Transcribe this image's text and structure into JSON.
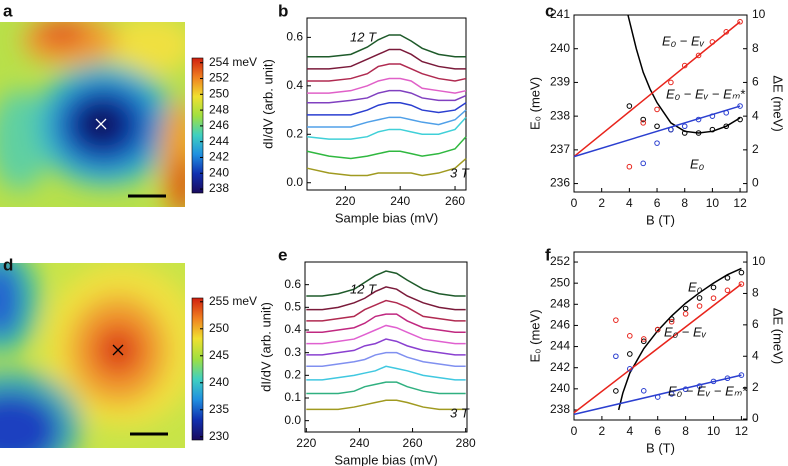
{
  "chart_data": [
    {
      "type": "heatmap",
      "label": "a",
      "colormap": [
        "#1a0a5e",
        "#1030b0",
        "#2090e0",
        "#40d0c0",
        "#a0e040",
        "#f0e030",
        "#f08020",
        "#d02010"
      ],
      "clim": [
        237.5,
        254.6
      ],
      "cticks": [
        {
          "value": 254,
          "label": "254 meV"
        },
        252,
        250,
        248,
        246,
        244,
        242,
        240,
        238
      ]
    },
    {
      "type": "line",
      "label": "b",
      "xlabel": "Sample bias (mV)",
      "ylabel": "dI/dV (arb. unit)",
      "xlim": [
        206,
        264
      ],
      "ylim": [
        -0.03,
        0.68
      ],
      "xticks": [
        220,
        240,
        260
      ],
      "yticks": [
        {
          "value": 0,
          "label": "0.0"
        },
        0.2,
        0.4,
        0.6
      ],
      "x": [
        206,
        214,
        222,
        228,
        232,
        236,
        240,
        244,
        248,
        254,
        260,
        264
      ],
      "series": [
        {
          "color": "#1e5a2a",
          "values": [
            0.52,
            0.52,
            0.53,
            0.56,
            0.59,
            0.61,
            0.61,
            0.585,
            0.555,
            0.53,
            0.52,
            0.52
          ]
        },
        {
          "color": "#7a1a3a",
          "values": [
            0.47,
            0.47,
            0.48,
            0.51,
            0.53,
            0.55,
            0.55,
            0.53,
            0.5,
            0.48,
            0.47,
            0.47
          ]
        },
        {
          "color": "#b02a50",
          "values": [
            0.42,
            0.42,
            0.43,
            0.45,
            0.48,
            0.49,
            0.49,
            0.47,
            0.45,
            0.43,
            0.42,
            0.43
          ]
        },
        {
          "color": "#e060c8",
          "values": [
            0.37,
            0.37,
            0.38,
            0.4,
            0.42,
            0.43,
            0.43,
            0.42,
            0.39,
            0.38,
            0.37,
            0.38
          ]
        },
        {
          "color": "#8040c0",
          "values": [
            0.33,
            0.33,
            0.34,
            0.35,
            0.37,
            0.38,
            0.38,
            0.37,
            0.35,
            0.34,
            0.34,
            0.36
          ]
        },
        {
          "color": "#2b3fd0",
          "values": [
            0.28,
            0.28,
            0.28,
            0.3,
            0.32,
            0.33,
            0.33,
            0.32,
            0.3,
            0.29,
            0.3,
            0.33
          ]
        },
        {
          "color": "#50a0e8",
          "values": [
            0.23,
            0.23,
            0.23,
            0.25,
            0.26,
            0.27,
            0.27,
            0.26,
            0.25,
            0.24,
            0.26,
            0.3
          ]
        },
        {
          "color": "#40d0d8",
          "values": [
            0.19,
            0.18,
            0.18,
            0.19,
            0.21,
            0.22,
            0.22,
            0.21,
            0.2,
            0.2,
            0.22,
            0.27
          ]
        },
        {
          "color": "#30b840",
          "values": [
            0.13,
            0.11,
            0.1,
            0.11,
            0.12,
            0.13,
            0.13,
            0.12,
            0.11,
            0.12,
            0.14,
            0.19
          ]
        },
        {
          "color": "#a09a20",
          "values": [
            0.06,
            0.04,
            0.03,
            0.03,
            0.04,
            0.04,
            0.04,
            0.04,
            0.03,
            0.04,
            0.06,
            0.1
          ]
        }
      ],
      "annotations": [
        {
          "text": "12 T",
          "color": "#1e5a2a"
        },
        {
          "text": "3 T",
          "color": "#a09a20"
        }
      ]
    },
    {
      "type": "line",
      "label": "c",
      "xlabel": "B (T)",
      "ylabel": "E₀ (meV)",
      "y2label": "ΔE (meV)",
      "xlim": [
        0,
        12.5
      ],
      "ylim": [
        235.75,
        241
      ],
      "y2lim": [
        -0.5,
        10
      ],
      "xticks": [
        0,
        2,
        4,
        6,
        8,
        10,
        12
      ],
      "yticks": [
        236,
        237,
        238,
        239,
        240,
        241
      ],
      "y2ticks": [
        0,
        2,
        4,
        6,
        8,
        10
      ],
      "series": [
        {
          "mode": "line",
          "axis": "y",
          "color": "#000000",
          "x": [
            3.9,
            4.5,
            5,
            5.5,
            6,
            6.5,
            7,
            8,
            9,
            10,
            11,
            12
          ],
          "values": [
            241,
            240,
            239.3,
            238.8,
            238.4,
            238.1,
            237.8,
            237.55,
            237.5,
            237.55,
            237.7,
            237.95
          ]
        },
        {
          "mode": "markers",
          "axis": "y",
          "color": "#000000",
          "x": [
            4,
            5,
            6,
            7,
            8,
            9,
            10,
            11,
            12
          ],
          "values": [
            238.3,
            237.9,
            237.7,
            237.6,
            237.5,
            237.5,
            237.6,
            237.7,
            237.9
          ]
        },
        {
          "mode": "line",
          "axis": "y2",
          "color": "#e8241c",
          "x": [
            0,
            12
          ],
          "values": [
            1.6,
            9.6
          ]
        },
        {
          "mode": "markers",
          "axis": "y2",
          "color": "#e8241c",
          "x": [
            4,
            5,
            6,
            7,
            8,
            9,
            10,
            11,
            12
          ],
          "values": [
            1.0,
            3.6,
            4.4,
            6.0,
            7.0,
            7.6,
            8.4,
            9.0,
            9.6
          ]
        },
        {
          "mode": "line",
          "axis": "y2",
          "color": "#2b3fd0",
          "x": [
            0,
            12
          ],
          "values": [
            1.6,
            4.6
          ]
        },
        {
          "mode": "markers",
          "axis": "y2",
          "color": "#2b3fd0",
          "x": [
            5,
            6,
            7,
            8,
            9,
            10,
            11,
            12
          ],
          "values": [
            1.2,
            2.4,
            3.2,
            3.4,
            3.8,
            4.0,
            4.2,
            4.6
          ]
        }
      ],
      "annotations": [
        {
          "text": "E₀ − Eᵥ",
          "color": "#e8241c"
        },
        {
          "text": "E₀ − Eᵥ − Eₘ*",
          "color": "#2b3fd0"
        },
        {
          "text": "E₀",
          "color": "#000000"
        }
      ]
    },
    {
      "type": "heatmap",
      "label": "d",
      "colormap": [
        "#1a0a5e",
        "#1030b0",
        "#2090e0",
        "#40d0c0",
        "#a0e040",
        "#f0e030",
        "#f08020",
        "#d02010"
      ],
      "clim": [
        229.4,
        255.7
      ],
      "cticks": [
        {
          "value": 255,
          "label": "255 meV"
        },
        250,
        245,
        240,
        235,
        230
      ]
    },
    {
      "type": "line",
      "label": "e",
      "xlabel": "Sample bias (mV)",
      "ylabel": "dI/dV (arb. unit)",
      "xlim": [
        219.5,
        280.5
      ],
      "ylim": [
        -0.05,
        0.7
      ],
      "xticks": [
        220,
        240,
        260,
        280
      ],
      "yticks": [
        {
          "value": 0,
          "label": "0.0"
        },
        0.1,
        0.2,
        0.3,
        0.4,
        0.5,
        0.6
      ],
      "x": [
        220,
        226,
        232,
        238,
        242,
        246,
        250,
        254,
        258,
        264,
        270,
        276,
        280
      ],
      "series": [
        {
          "color": "#1e5a2a",
          "values": [
            0.55,
            0.55,
            0.56,
            0.58,
            0.61,
            0.64,
            0.66,
            0.65,
            0.62,
            0.58,
            0.56,
            0.55,
            0.55
          ]
        },
        {
          "color": "#7a1a3a",
          "values": [
            0.49,
            0.49,
            0.5,
            0.52,
            0.54,
            0.57,
            0.59,
            0.58,
            0.55,
            0.52,
            0.5,
            0.49,
            0.49
          ]
        },
        {
          "color": "#b02a50",
          "values": [
            0.44,
            0.44,
            0.45,
            0.46,
            0.49,
            0.51,
            0.53,
            0.52,
            0.5,
            0.46,
            0.45,
            0.44,
            0.44
          ]
        },
        {
          "color": "#c02880",
          "values": [
            0.39,
            0.39,
            0.4,
            0.41,
            0.43,
            0.46,
            0.47,
            0.47,
            0.44,
            0.41,
            0.4,
            0.39,
            0.39
          ]
        },
        {
          "color": "#e060d0",
          "values": [
            0.34,
            0.34,
            0.35,
            0.36,
            0.38,
            0.4,
            0.42,
            0.41,
            0.39,
            0.36,
            0.35,
            0.34,
            0.34
          ]
        },
        {
          "color": "#8a40d0",
          "values": [
            0.29,
            0.29,
            0.3,
            0.31,
            0.33,
            0.34,
            0.36,
            0.35,
            0.33,
            0.31,
            0.3,
            0.29,
            0.29
          ]
        },
        {
          "color": "#8090f0",
          "values": [
            0.24,
            0.24,
            0.25,
            0.26,
            0.27,
            0.29,
            0.3,
            0.3,
            0.28,
            0.26,
            0.25,
            0.24,
            0.24
          ]
        },
        {
          "color": "#40c8e0",
          "values": [
            0.18,
            0.18,
            0.19,
            0.2,
            0.21,
            0.22,
            0.24,
            0.23,
            0.22,
            0.2,
            0.19,
            0.18,
            0.18
          ]
        },
        {
          "color": "#30b080",
          "values": [
            0.12,
            0.12,
            0.12,
            0.13,
            0.15,
            0.16,
            0.17,
            0.17,
            0.15,
            0.13,
            0.12,
            0.12,
            0.12
          ]
        },
        {
          "color": "#a09a20",
          "values": [
            0.05,
            0.05,
            0.05,
            0.06,
            0.07,
            0.08,
            0.09,
            0.09,
            0.08,
            0.06,
            0.05,
            0.05,
            0.05
          ]
        }
      ],
      "annotations": [
        {
          "text": "12 T",
          "color": "#1e5a2a"
        },
        {
          "text": "3 T",
          "color": "#a09a20"
        }
      ]
    },
    {
      "type": "line",
      "label": "f",
      "xlabel": "B (T)",
      "ylabel": "E₀ (meV)",
      "y2label": "ΔE (meV)",
      "xlim": [
        0,
        12.4
      ],
      "ylim": [
        237.05,
        252.95
      ],
      "y2lim": [
        -0.06,
        10.64
      ],
      "xticks": [
        0,
        2,
        4,
        6,
        8,
        10,
        12
      ],
      "yticks": [
        238,
        240,
        242,
        244,
        246,
        248,
        250,
        252
      ],
      "y2ticks": [
        0,
        2,
        4,
        6,
        8,
        10
      ],
      "series": [
        {
          "mode": "line",
          "axis": "y",
          "color": "#000000",
          "x": [
            3.2,
            3.5,
            4,
            5,
            6,
            7,
            8,
            9,
            10,
            11,
            12
          ],
          "values": [
            238,
            239.6,
            241.5,
            243.8,
            245.5,
            246.9,
            248.1,
            249.1,
            250,
            250.8,
            251.4
          ]
        },
        {
          "mode": "markers",
          "axis": "y",
          "color": "#000000",
          "x": [
            3,
            4,
            5,
            6,
            7,
            8,
            9,
            10,
            11,
            12
          ],
          "values": [
            239.8,
            243.3,
            244.5,
            245.6,
            246.6,
            247.6,
            248.6,
            249.6,
            250.5,
            251.0
          ]
        },
        {
          "mode": "line",
          "axis": "y2",
          "color": "#e8241c",
          "x": [
            0,
            12
          ],
          "values": [
            0.4,
            8.6
          ]
        },
        {
          "mode": "markers",
          "axis": "y2",
          "color": "#e8241c",
          "x": [
            3,
            4,
            5,
            6,
            7,
            8,
            9,
            10,
            11,
            12
          ],
          "values": [
            6.3,
            5.3,
            5.1,
            5.7,
            6.2,
            6.7,
            7.2,
            7.7,
            8.2,
            8.6
          ]
        },
        {
          "mode": "line",
          "axis": "y2",
          "color": "#2b3fd0",
          "x": [
            0,
            12
          ],
          "values": [
            0.3,
            2.8
          ]
        },
        {
          "mode": "markers",
          "axis": "y2",
          "color": "#2b3fd0",
          "x": [
            3,
            4,
            5,
            6,
            7,
            8,
            9,
            10,
            11,
            12
          ],
          "values": [
            4.0,
            3.2,
            1.8,
            1.4,
            1.6,
            1.9,
            2.1,
            2.4,
            2.6,
            2.8
          ]
        }
      ],
      "annotations": [
        {
          "text": "E₀",
          "color": "#000000"
        },
        {
          "text": "E₀ − Eᵥ",
          "color": "#e8241c"
        },
        {
          "text": "E₀ − Eᵥ − Eₘ*",
          "color": "#2b3fd0"
        }
      ]
    }
  ]
}
